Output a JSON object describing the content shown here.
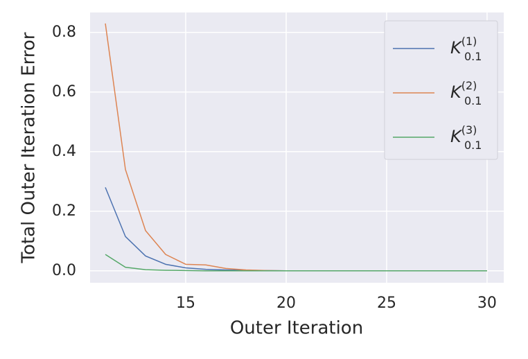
{
  "chart_data": {
    "type": "line",
    "x_label": "Outer Iteration",
    "y_label": "Total Outer Iteration Error",
    "x": [
      11,
      12,
      13,
      14,
      15,
      16,
      17,
      18,
      19,
      20,
      21,
      22,
      23,
      24,
      25,
      26,
      27,
      28,
      29,
      30
    ],
    "series": [
      {
        "name": "K_{0.1}^{(1)}",
        "color": "#4c72b0",
        "values": [
          0.28,
          0.115,
          0.05,
          0.022,
          0.01,
          0.005,
          0.003,
          0.002,
          0.001,
          0,
          0,
          0,
          0,
          0,
          0,
          0,
          0,
          0,
          0,
          0
        ]
      },
      {
        "name": "K_{0.1}^{(2)}",
        "color": "#dd8452",
        "values": [
          0.83,
          0.34,
          0.135,
          0.055,
          0.022,
          0.02,
          0.008,
          0.003,
          0.001,
          0,
          0,
          0,
          0,
          0,
          0,
          0,
          0,
          0,
          0,
          0
        ]
      },
      {
        "name": "K_{0.1}^{(3)}",
        "color": "#55a868",
        "values": [
          0.055,
          0.012,
          0.004,
          0.002,
          0.001,
          0,
          0,
          0,
          0,
          0,
          0,
          0,
          0,
          0,
          0,
          0,
          0,
          0,
          0,
          0
        ]
      }
    ],
    "xlim": [
      10.24,
      30.83
    ],
    "xticks": [
      15,
      20,
      25,
      30
    ],
    "ylim": [
      -0.04,
      0.867
    ],
    "yticks": [
      {
        "value": 0,
        "label": "0.0"
      },
      0.2,
      0.4,
      0.6,
      0.8
    ],
    "grid": true,
    "legend": "upper right"
  }
}
